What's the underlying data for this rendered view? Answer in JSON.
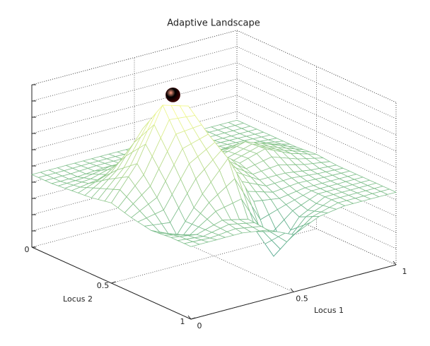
{
  "chart_data": {
    "type": "surface",
    "title": "Adaptive Landscape",
    "xlabel": "Locus 1",
    "ylabel": "Locus 2",
    "x": [
      0,
      0.125,
      0.25,
      0.375,
      0.5,
      0.625,
      0.75,
      0.875,
      1
    ],
    "y": [
      0,
      0.125,
      0.25,
      0.375,
      0.5,
      0.625,
      0.75,
      0.875,
      1
    ],
    "z": [
      [
        0.38,
        0.38,
        0.38,
        0.38,
        0.38,
        0.38,
        0.38,
        0.38,
        0.38
      ],
      [
        0.38,
        0.38,
        0.39,
        0.39,
        0.38,
        0.38,
        0.38,
        0.38,
        0.38
      ],
      [
        0.39,
        0.41,
        0.46,
        0.45,
        0.41,
        0.39,
        0.4,
        0.39,
        0.38
      ],
      [
        0.4,
        0.51,
        0.69,
        0.66,
        0.48,
        0.44,
        0.48,
        0.43,
        0.38
      ],
      [
        0.42,
        0.59,
        0.86,
        0.82,
        0.55,
        0.45,
        0.49,
        0.43,
        0.39
      ],
      [
        0.39,
        0.46,
        0.68,
        0.72,
        0.49,
        0.41,
        0.41,
        0.39,
        0.38
      ],
      [
        0.37,
        0.31,
        0.49,
        0.64,
        0.38,
        0.36,
        0.38,
        0.38,
        0.38
      ],
      [
        0.38,
        0.36,
        0.4,
        0.37,
        0.14,
        0.31,
        0.38,
        0.38,
        0.38
      ],
      [
        0.38,
        0.38,
        0.38,
        0.36,
        0.3,
        0.36,
        0.38,
        0.38,
        0.38
      ]
    ],
    "xlim": [
      0,
      1
    ],
    "ylim": [
      0,
      1
    ],
    "zlim": [
      0,
      0.85
    ],
    "xticks": [
      0,
      0.5,
      1
    ],
    "yticks": [
      0.5,
      1
    ],
    "zticks": [
      0
    ],
    "grid": true,
    "colormap": "summer",
    "point": {
      "x": 0.3,
      "y": 0.5,
      "z": 0.9,
      "color": "#b01808"
    }
  }
}
